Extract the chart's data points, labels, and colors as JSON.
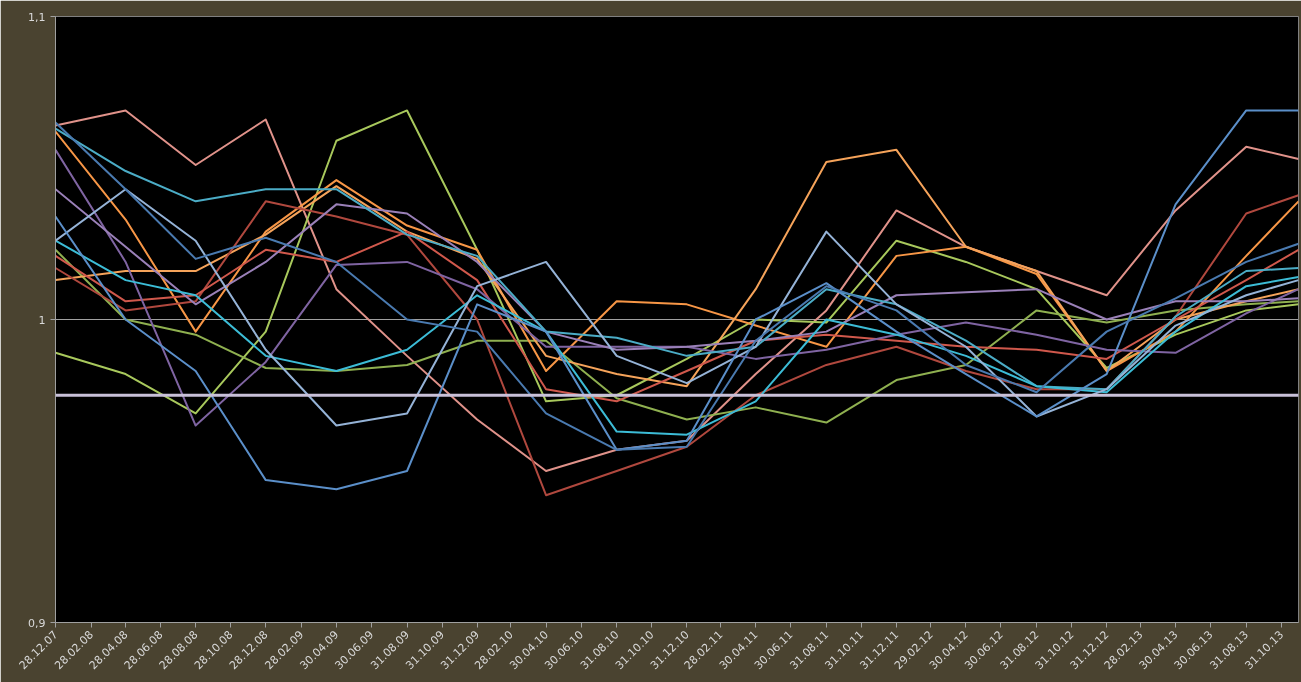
{
  "chart_data": {
    "type": "line",
    "x": [
      "2007-12-28",
      "2008-04-28",
      "2008-08-28",
      "2008-12-28",
      "2009-04-30",
      "2009-08-31",
      "2009-12-31",
      "2010-04-30",
      "2010-08-31",
      "2010-12-31",
      "2011-04-30",
      "2011-08-31",
      "2011-12-31",
      "2012-04-30",
      "2012-08-31",
      "2012-12-31",
      "2013-04-30",
      "2013-08-31",
      "2013-11-30"
    ],
    "series": [
      {
        "color": "#e0928a",
        "values": [
          1.064,
          1.069,
          1.051,
          1.066,
          1.01,
          0.988,
          0.967,
          0.95,
          0.957,
          0.96,
          0.982,
          1.003,
          1.036,
          1.024,
          1.016,
          1.008,
          1.036,
          1.057,
          1.053
        ]
      },
      {
        "color": "#a8c85c",
        "values": [
          0.989,
          0.982,
          0.969,
          0.996,
          1.059,
          1.069,
          1.023,
          0.973,
          0.975,
          0.987,
          1.0,
          0.999,
          1.026,
          1.019,
          1.01,
          0.984,
          0.995,
          1.003,
          1.005
        ]
      },
      {
        "color": "#8fb050",
        "values": [
          1.023,
          1.0,
          0.995,
          0.984,
          0.983,
          0.985,
          0.993,
          0.993,
          0.974,
          0.967,
          0.971,
          0.966,
          0.98,
          0.985,
          1.003,
          0.999,
          1.003,
          1.005,
          1.006
        ]
      },
      {
        "color": "#f79646",
        "values": [
          1.062,
          1.033,
          0.996,
          1.029,
          1.046,
          1.031,
          1.023,
          0.983,
          1.006,
          1.005,
          0.998,
          0.991,
          1.021,
          1.024,
          1.015,
          0.983,
          0.996,
          1.021,
          1.039
        ]
      },
      {
        "color": "#f5a35a",
        "values": [
          1.013,
          1.016,
          1.016,
          1.028,
          1.044,
          1.029,
          1.02,
          0.988,
          0.982,
          0.978,
          1.01,
          1.052,
          1.056,
          1.024,
          1.016,
          0.983,
          1.0,
          1.006,
          1.01
        ]
      },
      {
        "color": "#b0483e",
        "values": [
          1.017,
          1.003,
          1.006,
          1.039,
          1.034,
          1.028,
          1.0,
          0.942,
          0.95,
          0.958,
          0.975,
          0.985,
          0.991,
          0.983,
          0.977,
          0.977,
          1.001,
          1.035,
          1.041
        ]
      },
      {
        "color": "#d0584c",
        "values": [
          1.021,
          1.006,
          1.008,
          1.023,
          1.019,
          1.029,
          1.013,
          0.977,
          0.973,
          0.983,
          0.993,
          0.995,
          0.993,
          0.991,
          0.99,
          0.987,
          1.0,
          1.013,
          1.023
        ]
      },
      {
        "color": "#7f64a2",
        "values": [
          1.056,
          1.019,
          0.965,
          0.986,
          1.018,
          1.019,
          1.01,
          0.991,
          0.991,
          0.991,
          0.987,
          0.99,
          0.995,
          0.999,
          0.995,
          0.99,
          0.989,
          1.002,
          1.01
        ]
      },
      {
        "color": "#9a80b8",
        "values": [
          1.043,
          1.024,
          1.005,
          1.019,
          1.038,
          1.035,
          1.019,
          0.996,
          0.99,
          0.991,
          0.993,
          0.996,
          1.008,
          1.009,
          1.01,
          1.0,
          1.006,
          1.006,
          1.007
        ]
      },
      {
        "color": "#4bacc6",
        "values": [
          1.063,
          1.049,
          1.039,
          1.043,
          1.043,
          1.028,
          1.021,
          0.996,
          0.994,
          0.988,
          0.991,
          1.01,
          1.005,
          0.993,
          0.978,
          0.977,
          1.001,
          1.016,
          1.017
        ]
      },
      {
        "color": "#3cbcd6",
        "values": [
          1.026,
          1.013,
          1.008,
          0.988,
          0.983,
          0.99,
          1.008,
          0.996,
          0.963,
          0.962,
          0.973,
          1.0,
          0.995,
          0.988,
          0.978,
          0.976,
          0.996,
          1.011,
          1.014
        ]
      },
      {
        "color": "#95b3d7",
        "values": [
          1.026,
          1.043,
          1.026,
          0.99,
          0.965,
          0.969,
          1.011,
          1.019,
          0.988,
          0.979,
          0.991,
          1.029,
          1.005,
          0.991,
          0.968,
          0.977,
          0.998,
          1.008,
          1.013
        ]
      },
      {
        "color": "#5b8fc9",
        "values": [
          1.034,
          1.0,
          0.983,
          0.947,
          0.944,
          0.95,
          1.005,
          0.996,
          0.957,
          0.96,
          1.0,
          1.012,
          0.996,
          0.982,
          0.968,
          0.982,
          1.038,
          1.069,
          1.069
        ]
      },
      {
        "color": "#4a7ab0",
        "values": [
          1.065,
          1.043,
          1.02,
          1.027,
          1.019,
          1.0,
          0.996,
          0.969,
          0.957,
          0.958,
          0.993,
          1.011,
          1.003,
          0.985,
          0.976,
          0.996,
          1.007,
          1.019,
          1.025
        ]
      }
    ],
    "xlim": [
      "2007-12-28",
      "2013-11-30"
    ],
    "xticks": [
      {
        "value": "2007-12-28",
        "label": "28.12.07"
      },
      {
        "value": "2008-02-28",
        "label": "28.02.08"
      },
      {
        "value": "2008-04-28",
        "label": "28.04.08"
      },
      {
        "value": "2008-06-28",
        "label": "28.06.08"
      },
      {
        "value": "2008-08-28",
        "label": "28.08.08"
      },
      {
        "value": "2008-10-28",
        "label": "28.10.08"
      },
      {
        "value": "2008-12-28",
        "label": "28.12.08"
      },
      {
        "value": "2009-02-28",
        "label": "28.02.09"
      },
      {
        "value": "2009-04-30",
        "label": "30.04.09"
      },
      {
        "value": "2009-06-30",
        "label": "30.06.09"
      },
      {
        "value": "2009-08-31",
        "label": "31.08.09"
      },
      {
        "value": "2009-10-31",
        "label": "31.10.09"
      },
      {
        "value": "2009-12-31",
        "label": "31.12.09"
      },
      {
        "value": "2010-02-28",
        "label": "28.02.10"
      },
      {
        "value": "2010-04-30",
        "label": "30.04.10"
      },
      {
        "value": "2010-06-30",
        "label": "30.06.10"
      },
      {
        "value": "2010-08-31",
        "label": "31.08.10"
      },
      {
        "value": "2010-10-31",
        "label": "31.10.10"
      },
      {
        "value": "2010-12-31",
        "label": "31.12.10"
      },
      {
        "value": "2011-02-28",
        "label": "28.02.11"
      },
      {
        "value": "2011-04-30",
        "label": "30.04.11"
      },
      {
        "value": "2011-06-30",
        "label": "30.06.11"
      },
      {
        "value": "2011-08-31",
        "label": "31.08.11"
      },
      {
        "value": "2011-10-31",
        "label": "31.10.11"
      },
      {
        "value": "2011-12-31",
        "label": "31.12.11"
      },
      {
        "value": "2012-02-29",
        "label": "29.02.12"
      },
      {
        "value": "2012-04-30",
        "label": "30.04.12"
      },
      {
        "value": "2012-06-30",
        "label": "30.06.12"
      },
      {
        "value": "2012-08-31",
        "label": "31.08.12"
      },
      {
        "value": "2012-10-31",
        "label": "31.10.12"
      },
      {
        "value": "2012-12-31",
        "label": "31.12.12"
      },
      {
        "value": "2013-02-28",
        "label": "28.02.13"
      },
      {
        "value": "2013-04-30",
        "label": "30.04.13"
      },
      {
        "value": "2013-06-30",
        "label": "30.06.13"
      },
      {
        "value": "2013-08-31",
        "label": "31.08.13"
      },
      {
        "value": "2013-10-31",
        "label": "31.10.13"
      }
    ],
    "ylim": [
      0.9,
      1.1
    ],
    "yticks": [
      {
        "value": 0.9,
        "label": "0,9"
      },
      {
        "value": 1,
        "label": "1"
      },
      {
        "value": 1.1,
        "label": "1,1"
      }
    ],
    "grid": "y",
    "ref_lines": [
      {
        "axis": "y",
        "value": 0.975,
        "color": "#c8c0d8"
      }
    ]
  }
}
